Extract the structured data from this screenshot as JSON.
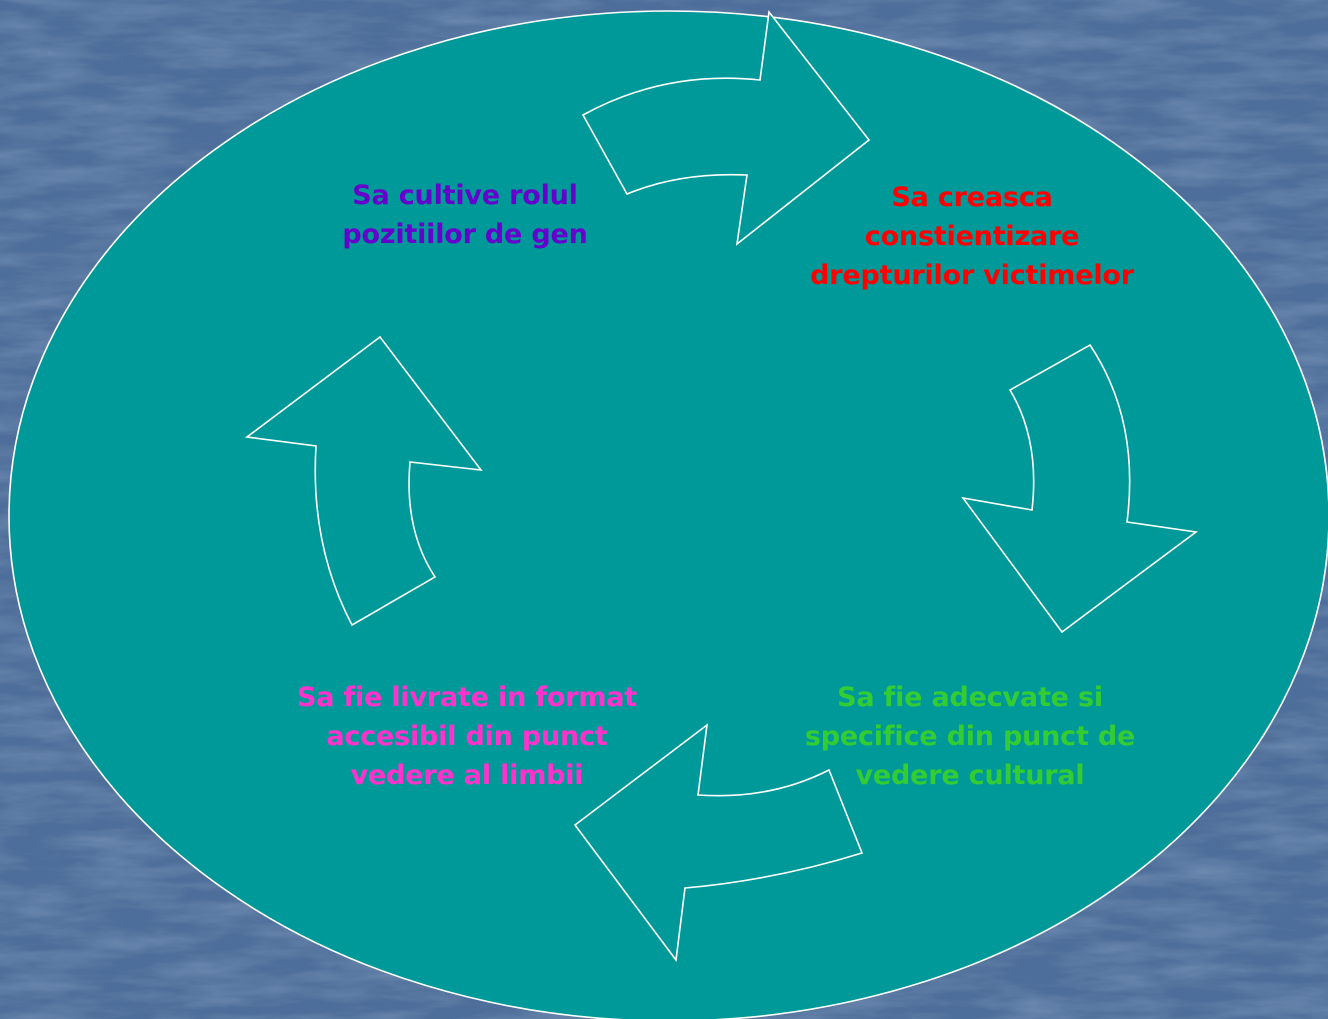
{
  "colors": {
    "background": "#4d6e9a",
    "ellipse_fill": "#009999",
    "stroke": "#ffffff",
    "top_left_text": "#6600cc",
    "top_right_text": "#ff0000",
    "bottom_right_text": "#33cc33",
    "bottom_left_text": "#ff33cc"
  },
  "icons": [
    "arrow-top-icon",
    "arrow-right-icon",
    "arrow-bottom-icon",
    "arrow-left-icon"
  ],
  "cycle": {
    "top_left": {
      "line1": "Sa  cultive rolul",
      "line2": "pozitiilor de gen"
    },
    "top_right": {
      "line1": "Sa creasca",
      "line2": "constientizare",
      "line3": "drepturilor victimelor"
    },
    "bottom_right": {
      "line1": "Sa fie  adecvate si",
      "line2": "specifice din punct de",
      "line3": "vedere  cultural"
    },
    "bottom_left": {
      "line1": "Sa fie livrate in format",
      "line2": "accesibil din punct",
      "line3": "vedere al limbii"
    }
  }
}
